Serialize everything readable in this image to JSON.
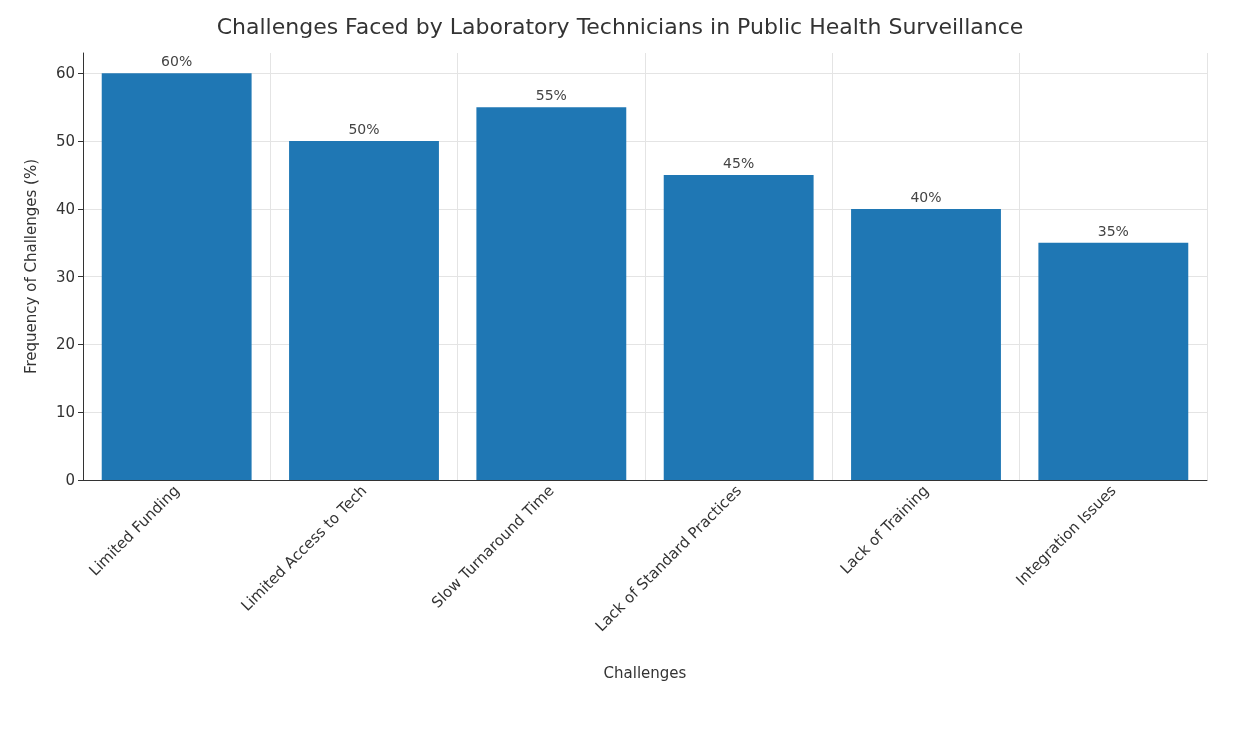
{
  "chart_data": {
    "type": "bar",
    "title": "Challenges Faced by Laboratory Technicians in Public Health Surveillance",
    "xlabel": "Challenges",
    "ylabel": "Frequency of Challenges (%)",
    "categories": [
      "Limited Funding",
      "Limited Access to Tech",
      "Slow Turnaround Time",
      "Lack of Standard Practices",
      "Lack of Training",
      "Integration Issues"
    ],
    "values": [
      60,
      50,
      55,
      45,
      40,
      35
    ],
    "value_labels": [
      "60%",
      "50%",
      "55%",
      "45%",
      "40%",
      "35%"
    ],
    "color": "#1f77b4",
    "ylim": [
      0,
      63
    ],
    "yticks": [
      0,
      10,
      20,
      30,
      40,
      50,
      60
    ],
    "grid": true
  }
}
